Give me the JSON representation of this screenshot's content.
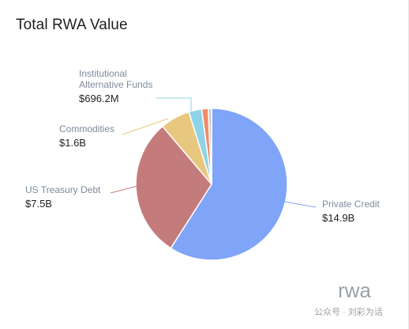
{
  "chart_data": {
    "type": "pie",
    "title": "Total RWA Value",
    "slices": [
      {
        "label": "Private Credit",
        "value_label": "$14.9B",
        "value": 14.9,
        "color": "#7fa4f8"
      },
      {
        "label": "US Treasury Debt",
        "value_label": "$7.5B",
        "value": 7.5,
        "color": "#c47b7b"
      },
      {
        "label": "Commodities",
        "value_label": "$1.6B",
        "value": 1.6,
        "color": "#e8c87f"
      },
      {
        "label": "Institutional Alternative Funds",
        "label_lines": [
          "Institutional",
          "Alternative Funds"
        ],
        "value_label": "$696.2M",
        "value": 0.6962,
        "color": "#8fd3e8"
      },
      {
        "label": "",
        "value_label": "",
        "value": 0.35,
        "color": "#f08c6c"
      },
      {
        "label": "",
        "value_label": "",
        "value": 0.18,
        "color": "#c9c9c9"
      }
    ],
    "legend": "none"
  },
  "watermark": {
    "brand": "rwa",
    "caption": "公众号 · 刘彩为话"
  }
}
